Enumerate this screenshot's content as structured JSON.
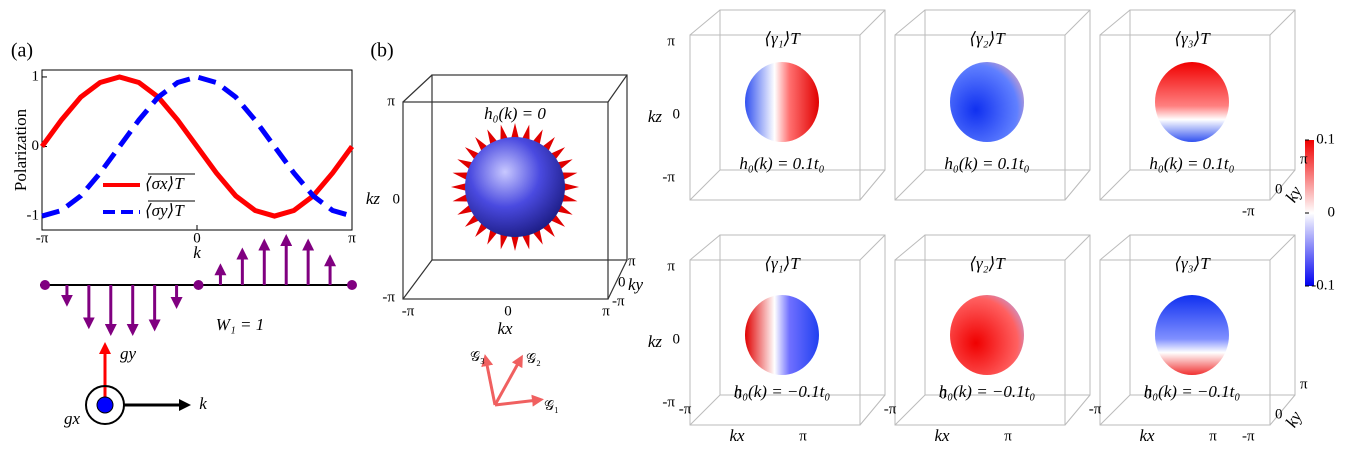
{
  "panel_a": {
    "label": "(a)",
    "chart_data": {
      "type": "line",
      "ylabel": "Polarization",
      "xlabel": "k",
      "x": [
        -3.1416,
        -2.7489,
        -2.3562,
        -1.9635,
        -1.5708,
        -1.1781,
        -0.7854,
        -0.3927,
        0,
        0.3927,
        0.7854,
        1.1781,
        1.5708,
        1.9635,
        2.3562,
        2.7489,
        3.1416
      ],
      "series": [
        {
          "name": "⟨σx⟩T",
          "color": "#ff0000",
          "dash": false,
          "values": [
            0,
            0.38,
            0.71,
            0.92,
            1,
            0.92,
            0.71,
            0.38,
            0,
            -0.38,
            -0.71,
            -0.92,
            -1,
            -0.92,
            -0.71,
            -0.38,
            0
          ]
        },
        {
          "name": "⟨σy⟩T",
          "color": "#0000ff",
          "dash": true,
          "values": [
            -1,
            -0.92,
            -0.71,
            -0.38,
            0,
            0.38,
            0.71,
            0.92,
            1,
            0.92,
            0.71,
            0.38,
            0,
            -0.38,
            -0.71,
            -0.92,
            -1
          ]
        }
      ],
      "xlim": [
        -3.1416,
        3.1416
      ],
      "xticks": [
        {
          "value": -3.1416,
          "label": "-π"
        },
        0,
        {
          "value": 3.1416,
          "label": "π"
        }
      ],
      "ylim": [
        -1.2,
        1.1
      ],
      "yticks": [
        -1,
        0,
        1
      ]
    },
    "winding": {
      "label": "W₁ = 1",
      "values": [
        0,
        -0.35,
        -0.85,
        -1,
        -1,
        -0.9,
        -0.4,
        0,
        0.35,
        0.7,
        0.9,
        1,
        0.9,
        0.55,
        0
      ],
      "color": "#800080"
    },
    "axes": {
      "gy": "gy",
      "gx": "gx",
      "k": "k"
    }
  },
  "panel_b": {
    "label": "(b)",
    "title": "h₀(k) = 0",
    "ticks": [
      "π",
      "0",
      "-π"
    ],
    "kx": "kx",
    "ky": "ky",
    "kz": "kz",
    "generators": [
      "𝒢₁",
      "𝒢₂",
      "𝒢₃"
    ]
  },
  "panels_3d": [
    {
      "title": "⟨γ₁⟩T",
      "label": "h₀(k) = 0.1t₀"
    },
    {
      "title": "⟨γ₂⟩T",
      "label": "h₀(k) = 0.1t₀"
    },
    {
      "title": "⟨γ₃⟩T",
      "label": "h₀(k) = 0.1t₀"
    },
    {
      "title": "⟨γ₁⟩T",
      "label": "h₀(k) = −0.1t₀"
    },
    {
      "title": "⟨γ₂⟩T",
      "label": "h₀(k) = −0.1t₀"
    },
    {
      "title": "⟨γ₃⟩T",
      "label": "h₀(k) = −0.1t₀"
    }
  ],
  "colorbar": {
    "lim": [
      -0.1,
      0.1
    ],
    "ticks": [
      0.1,
      0,
      -0.1
    ]
  }
}
